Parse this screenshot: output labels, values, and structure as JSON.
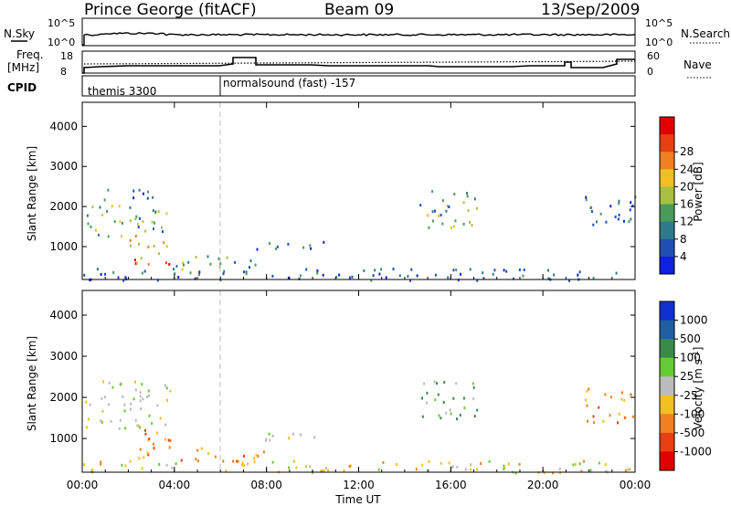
{
  "header": {
    "station": "Prince George (fitACF)",
    "beam": "Beam 09",
    "date": "13/Sep/2009"
  },
  "summary_panel": {
    "nsky_label": "N.Sky",
    "nsky_ticks": [
      "10^5",
      "10^0"
    ],
    "nsearch_label": "N.Search",
    "freq_label_1": "Freq.",
    "freq_label_2": "[MHz]",
    "freq_ticks": [
      "18",
      "8"
    ],
    "nave_label": "Nave",
    "nave_ticks": [
      "60",
      "0"
    ],
    "cpid_label": "CPID",
    "cpid_segments": [
      "themis 3300",
      "normalsound (fast) -157"
    ]
  },
  "chart_data": [
    {
      "type": "heatmap",
      "name": "power",
      "xlabel": "Time UT",
      "ylabel": "Slant Range [km]",
      "x_ticks": [
        "00:00",
        "04:00",
        "08:00",
        "12:00",
        "16:00",
        "20:00",
        "00:00"
      ],
      "y_ticks": [
        "1000",
        "2000",
        "3000",
        "4000"
      ],
      "xlim_hours": [
        0,
        24
      ],
      "ylim_km": [
        180,
        4600
      ],
      "colorbar": {
        "label": "Power [dB]",
        "ticks": [
          "4",
          "8",
          "12",
          "16",
          "20",
          "24",
          "28"
        ],
        "colors": [
          "#1020e0",
          "#1f4fb5",
          "#2f7a8a",
          "#4a9a5a",
          "#a8c040",
          "#f0c020",
          "#f08020",
          "#e84010",
          "#e00000"
        ]
      },
      "regions": [
        {
          "t0": 0.1,
          "t1": 3.8,
          "r0": 1250,
          "r1": 2100,
          "level": "med"
        },
        {
          "t0": 0.8,
          "t1": 3.6,
          "r0": 2150,
          "r1": 2450,
          "level": "low"
        },
        {
          "t0": 2.0,
          "t1": 3.9,
          "r0": 550,
          "r1": 1300,
          "level": "high"
        },
        {
          "t0": 4.0,
          "t1": 8.0,
          "r0": 450,
          "r1": 800,
          "level": "med"
        },
        {
          "t0": 6.4,
          "t1": 10.6,
          "r0": 950,
          "r1": 1150,
          "level": "low"
        },
        {
          "t0": 14.6,
          "t1": 17.2,
          "r0": 1500,
          "r1": 2450,
          "level": "med"
        },
        {
          "t0": 21.8,
          "t1": 24.0,
          "r0": 1400,
          "r1": 2300,
          "level": "low"
        },
        {
          "t0": 0.0,
          "t1": 24.0,
          "r0": 180,
          "r1": 480,
          "level": "low"
        }
      ]
    },
    {
      "type": "heatmap",
      "name": "velocity",
      "xlabel": "Time UT",
      "ylabel": "Slant Range [km]",
      "x_ticks": [
        "00:00",
        "04:00",
        "08:00",
        "12:00",
        "16:00",
        "20:00",
        "00:00"
      ],
      "y_ticks": [
        "1000",
        "2000",
        "3000",
        "4000"
      ],
      "xlim_hours": [
        0,
        24
      ],
      "ylim_km": [
        180,
        4600
      ],
      "colorbar": {
        "label": "Velocity [m s^-1]",
        "ticks": [
          "1000",
          "500",
          "100",
          "25",
          "-25",
          "-100",
          "-500",
          "-1000"
        ],
        "colors": [
          "#1030d0",
          "#2060a0",
          "#3a8a4a",
          "#66cc33",
          "#bbbbbb",
          "#f0c020",
          "#f08020",
          "#e84010",
          "#e00000"
        ]
      },
      "regions": [
        {
          "t0": 0.1,
          "t1": 3.8,
          "r0": 1250,
          "r1": 2450,
          "level": "gray"
        },
        {
          "t0": 2.0,
          "t1": 3.9,
          "r0": 550,
          "r1": 1300,
          "level": "orange"
        },
        {
          "t0": 4.0,
          "t1": 8.0,
          "r0": 450,
          "r1": 800,
          "level": "orange"
        },
        {
          "t0": 6.4,
          "t1": 10.6,
          "r0": 950,
          "r1": 1150,
          "level": "gray"
        },
        {
          "t0": 14.6,
          "t1": 17.2,
          "r0": 1500,
          "r1": 2450,
          "level": "green"
        },
        {
          "t0": 21.8,
          "t1": 24.0,
          "r0": 1400,
          "r1": 2300,
          "level": "orange"
        },
        {
          "t0": 0.0,
          "t1": 24.0,
          "r0": 180,
          "r1": 480,
          "level": "yellow"
        }
      ]
    }
  ],
  "colors": {
    "axis": "#000000",
    "dashed_line": "#bbbbbb"
  }
}
